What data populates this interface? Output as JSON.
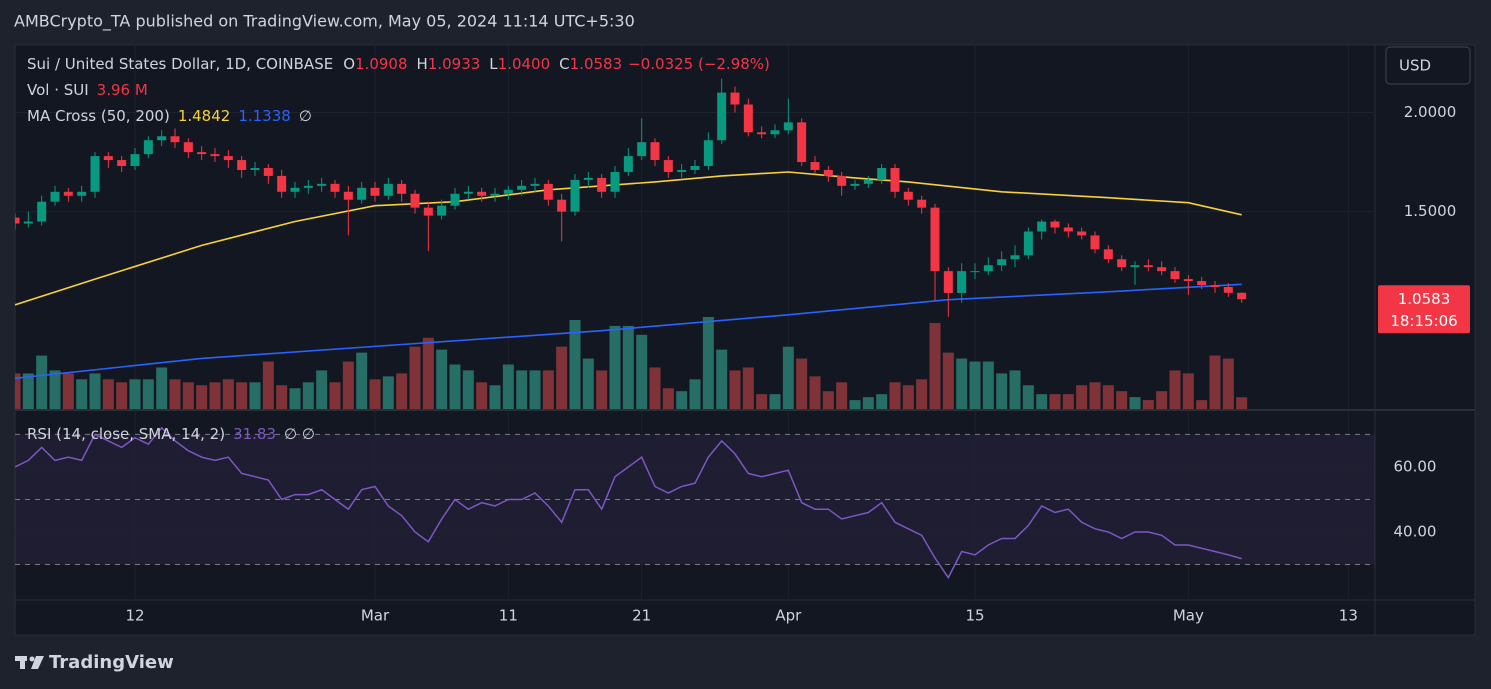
{
  "header": {
    "published": "AMBCrypto_TA published on TradingView.com, May 05, 2024 11:14 UTC+5:30",
    "currency": "USD",
    "brand": "TradingView"
  },
  "chart_data": [
    {
      "type": "candlestick",
      "title": "Sui / United States Dollar, 1D, COINBASE",
      "ohlc_legend": [
        {
          "key": "O",
          "label": "1.0908"
        },
        {
          "key": "H",
          "label": "1.0933"
        },
        {
          "key": "L",
          "label": "1.0400"
        },
        {
          "key": "C",
          "label": "1.0583"
        }
      ],
      "change_label": "−0.0325 (−2.98%)",
      "countdown": "18:15:06",
      "up_color": "#089981",
      "down_color": "#f23645",
      "xlim": [
        "2024-02-03",
        "2024-05-15"
      ],
      "xticks": [
        {
          "value": "2024-02-12",
          "label": "12"
        },
        {
          "value": "2024-03-01",
          "label": "Mar"
        },
        {
          "value": "2024-03-11",
          "label": "11"
        },
        {
          "value": "2024-03-21",
          "label": "21"
        },
        {
          "value": "2024-04-01",
          "label": "Apr"
        },
        {
          "value": "2024-04-15",
          "label": "15"
        },
        {
          "value": "2024-05-01",
          "label": "May"
        },
        {
          "value": "2024-05-13",
          "label": "13"
        }
      ],
      "ylim": [
        0.5,
        2.34
      ],
      "yticks": [
        {
          "value": 2,
          "label": "2.0000"
        },
        {
          "value": 1.5,
          "label": "1.5000"
        }
      ],
      "grid": true,
      "x": [
        "2024-02-03",
        "2024-02-04",
        "2024-02-05",
        "2024-02-06",
        "2024-02-07",
        "2024-02-08",
        "2024-02-09",
        "2024-02-10",
        "2024-02-11",
        "2024-02-12",
        "2024-02-13",
        "2024-02-14",
        "2024-02-15",
        "2024-02-16",
        "2024-02-17",
        "2024-02-18",
        "2024-02-19",
        "2024-02-20",
        "2024-02-21",
        "2024-02-22",
        "2024-02-23",
        "2024-02-24",
        "2024-02-25",
        "2024-02-26",
        "2024-02-27",
        "2024-02-28",
        "2024-02-29",
        "2024-03-01",
        "2024-03-02",
        "2024-03-03",
        "2024-03-04",
        "2024-03-05",
        "2024-03-06",
        "2024-03-07",
        "2024-03-08",
        "2024-03-09",
        "2024-03-10",
        "2024-03-11",
        "2024-03-12",
        "2024-03-13",
        "2024-03-14",
        "2024-03-15",
        "2024-03-16",
        "2024-03-17",
        "2024-03-18",
        "2024-03-19",
        "2024-03-20",
        "2024-03-21",
        "2024-03-22",
        "2024-03-23",
        "2024-03-24",
        "2024-03-25",
        "2024-03-26",
        "2024-03-27",
        "2024-03-28",
        "2024-03-29",
        "2024-03-30",
        "2024-03-31",
        "2024-04-01",
        "2024-04-02",
        "2024-04-03",
        "2024-04-04",
        "2024-04-05",
        "2024-04-06",
        "2024-04-07",
        "2024-04-08",
        "2024-04-09",
        "2024-04-10",
        "2024-04-11",
        "2024-04-12",
        "2024-04-13",
        "2024-04-14",
        "2024-04-15",
        "2024-04-16",
        "2024-04-17",
        "2024-04-18",
        "2024-04-19",
        "2024-04-20",
        "2024-04-21",
        "2024-04-22",
        "2024-04-23",
        "2024-04-24",
        "2024-04-25",
        "2024-04-26",
        "2024-04-27",
        "2024-04-28",
        "2024-04-29",
        "2024-04-30",
        "2024-05-01",
        "2024-05-02",
        "2024-05-03",
        "2024-05-04",
        "2024-05-05"
      ],
      "open": [
        1.47,
        1.44,
        1.45,
        1.55,
        1.6,
        1.58,
        1.6,
        1.78,
        1.76,
        1.73,
        1.79,
        1.86,
        1.88,
        1.85,
        1.8,
        1.79,
        1.78,
        1.76,
        1.71,
        1.72,
        1.68,
        1.6,
        1.62,
        1.63,
        1.64,
        1.6,
        1.56,
        1.62,
        1.58,
        1.64,
        1.59,
        1.52,
        1.48,
        1.53,
        1.59,
        1.6,
        1.58,
        1.59,
        1.61,
        1.63,
        1.64,
        1.56,
        1.5,
        1.66,
        1.67,
        1.6,
        1.7,
        1.78,
        1.85,
        1.76,
        1.7,
        1.71,
        1.73,
        1.86,
        2.1,
        2.04,
        1.9,
        1.89,
        1.91,
        1.95,
        1.75,
        1.71,
        1.68,
        1.63,
        1.64,
        1.66,
        1.72,
        1.6,
        1.56,
        1.52,
        1.2,
        1.09,
        1.2,
        1.2,
        1.23,
        1.26,
        1.28,
        1.4,
        1.45,
        1.42,
        1.4,
        1.38,
        1.31,
        1.26,
        1.22,
        1.23,
        1.22,
        1.2,
        1.16,
        1.15,
        1.13,
        1.12,
        1.0908
      ],
      "high": [
        1.49,
        1.5,
        1.58,
        1.63,
        1.62,
        1.63,
        1.8,
        1.8,
        1.78,
        1.82,
        1.88,
        1.91,
        1.92,
        1.87,
        1.83,
        1.82,
        1.81,
        1.78,
        1.75,
        1.74,
        1.71,
        1.65,
        1.66,
        1.67,
        1.66,
        1.63,
        1.65,
        1.65,
        1.67,
        1.66,
        1.61,
        1.55,
        1.56,
        1.62,
        1.63,
        1.62,
        1.62,
        1.63,
        1.66,
        1.67,
        1.66,
        1.59,
        1.69,
        1.7,
        1.69,
        1.73,
        1.82,
        1.97,
        1.87,
        1.78,
        1.74,
        1.76,
        1.9,
        2.17,
        2.13,
        2.07,
        1.93,
        1.94,
        2.07,
        1.97,
        1.78,
        1.73,
        1.7,
        1.66,
        1.68,
        1.74,
        1.74,
        1.62,
        1.58,
        1.54,
        1.22,
        1.24,
        1.24,
        1.27,
        1.3,
        1.33,
        1.42,
        1.46,
        1.46,
        1.44,
        1.42,
        1.4,
        1.33,
        1.28,
        1.25,
        1.26,
        1.25,
        1.22,
        1.18,
        1.17,
        1.15,
        1.14,
        1.0933
      ],
      "low": [
        1.41,
        1.42,
        1.43,
        1.53,
        1.55,
        1.55,
        1.57,
        1.72,
        1.7,
        1.71,
        1.77,
        1.83,
        1.82,
        1.77,
        1.76,
        1.75,
        1.72,
        1.67,
        1.68,
        1.64,
        1.57,
        1.57,
        1.59,
        1.6,
        1.57,
        1.38,
        1.54,
        1.55,
        1.56,
        1.55,
        1.49,
        1.3,
        1.46,
        1.51,
        1.56,
        1.55,
        1.55,
        1.56,
        1.58,
        1.6,
        1.53,
        1.35,
        1.48,
        1.62,
        1.57,
        1.57,
        1.68,
        1.76,
        1.73,
        1.67,
        1.67,
        1.69,
        1.71,
        1.84,
        2.0,
        1.88,
        1.87,
        1.87,
        1.89,
        1.73,
        1.69,
        1.65,
        1.58,
        1.61,
        1.62,
        1.64,
        1.57,
        1.53,
        1.49,
        1.05,
        0.97,
        1.04,
        1.16,
        1.18,
        1.2,
        1.22,
        1.26,
        1.36,
        1.39,
        1.37,
        1.36,
        1.29,
        1.24,
        1.2,
        1.13,
        1.2,
        1.18,
        1.14,
        1.08,
        1.11,
        1.09,
        1.07,
        1.04
      ],
      "close": [
        1.44,
        1.45,
        1.55,
        1.6,
        1.58,
        1.6,
        1.78,
        1.76,
        1.73,
        1.79,
        1.86,
        1.88,
        1.85,
        1.8,
        1.79,
        1.78,
        1.76,
        1.71,
        1.72,
        1.68,
        1.6,
        1.62,
        1.63,
        1.64,
        1.6,
        1.56,
        1.62,
        1.58,
        1.64,
        1.59,
        1.52,
        1.48,
        1.53,
        1.59,
        1.6,
        1.58,
        1.59,
        1.61,
        1.63,
        1.64,
        1.56,
        1.5,
        1.66,
        1.67,
        1.6,
        1.7,
        1.78,
        1.85,
        1.76,
        1.7,
        1.71,
        1.73,
        1.86,
        2.1,
        2.04,
        1.9,
        1.89,
        1.91,
        1.95,
        1.75,
        1.71,
        1.68,
        1.63,
        1.64,
        1.66,
        1.72,
        1.6,
        1.56,
        1.52,
        1.2,
        1.09,
        1.2,
        1.2,
        1.23,
        1.26,
        1.28,
        1.4,
        1.45,
        1.42,
        1.4,
        1.38,
        1.31,
        1.26,
        1.22,
        1.23,
        1.22,
        1.2,
        1.16,
        1.15,
        1.13,
        1.12,
        1.0908,
        1.0583
      ],
      "volume": {
        "name": "Vol · SUI",
        "label": "3.96 M",
        "up_color": "#266e66",
        "down_color": "#7f3338",
        "values": [
          12,
          12,
          18,
          13,
          12,
          10,
          12,
          10,
          9,
          10,
          10,
          14,
          10,
          9,
          8,
          9,
          10,
          9,
          9,
          16,
          8,
          7,
          9,
          13,
          9,
          16,
          19,
          10,
          11,
          12,
          21,
          24,
          20,
          15,
          13,
          9,
          8,
          15,
          13,
          13,
          13,
          21,
          30,
          17,
          13,
          28,
          28,
          25,
          14,
          7,
          6,
          10,
          31,
          20,
          13,
          14,
          5,
          5,
          21,
          17,
          11,
          6,
          9,
          3,
          4,
          5,
          9,
          8,
          10,
          29,
          19,
          17,
          16,
          16,
          12,
          13,
          8,
          5,
          5,
          5,
          8,
          9,
          8,
          6,
          4,
          3,
          6,
          13,
          12,
          3,
          18,
          17,
          3.96
        ]
      },
      "ma_legend": {
        "name": "MA Cross (50, 200)",
        "extra": "∅"
      },
      "ma": [
        {
          "color": "#f7d13b",
          "x": [
            "2024-02-03",
            "2024-02-09",
            "2024-02-17",
            "2024-02-24",
            "2024-03-01",
            "2024-03-07",
            "2024-03-14",
            "2024-03-22",
            "2024-03-27",
            "2024-04-01",
            "2024-04-06",
            "2024-04-10",
            "2024-04-17",
            "2024-04-25",
            "2024-05-01",
            "2024-05-05"
          ],
          "values": [
            1.03,
            1.16,
            1.33,
            1.45,
            1.53,
            1.55,
            1.61,
            1.65,
            1.68,
            1.7,
            1.67,
            1.65,
            1.6,
            1.57,
            1.545,
            1.4842
          ]
        },
        {
          "color": "#2962ff",
          "x": [
            "2024-02-03",
            "2024-02-17",
            "2024-03-03",
            "2024-03-18",
            "2024-04-01",
            "2024-04-13",
            "2024-04-25",
            "2024-05-05"
          ],
          "values": [
            0.66,
            0.76,
            0.83,
            0.9,
            0.98,
            1.056,
            1.096,
            1.1338
          ]
        }
      ]
    },
    {
      "type": "line",
      "title": "RSI (14, close, SMA, 14, 2)",
      "legend_extra": "∅ ∅",
      "xlim": [
        "2024-02-03",
        "2024-05-15"
      ],
      "ylim": [
        19.1,
        77.2
      ],
      "yticks": [
        {
          "value": 60,
          "label": "60.00"
        },
        {
          "value": 40,
          "label": "40.00"
        }
      ],
      "bands": [
        70,
        50,
        30
      ],
      "band_color": "#7e57c2",
      "x": [
        "2024-02-03",
        "2024-02-04",
        "2024-02-05",
        "2024-02-06",
        "2024-02-07",
        "2024-02-08",
        "2024-02-09",
        "2024-02-10",
        "2024-02-11",
        "2024-02-12",
        "2024-02-13",
        "2024-02-14",
        "2024-02-15",
        "2024-02-16",
        "2024-02-17",
        "2024-02-18",
        "2024-02-19",
        "2024-02-20",
        "2024-02-21",
        "2024-02-22",
        "2024-02-23",
        "2024-02-24",
        "2024-02-25",
        "2024-02-26",
        "2024-02-27",
        "2024-02-28",
        "2024-02-29",
        "2024-03-01",
        "2024-03-02",
        "2024-03-03",
        "2024-03-04",
        "2024-03-05",
        "2024-03-06",
        "2024-03-07",
        "2024-03-08",
        "2024-03-09",
        "2024-03-10",
        "2024-03-11",
        "2024-03-12",
        "2024-03-13",
        "2024-03-14",
        "2024-03-15",
        "2024-03-16",
        "2024-03-17",
        "2024-03-18",
        "2024-03-19",
        "2024-03-20",
        "2024-03-21",
        "2024-03-22",
        "2024-03-23",
        "2024-03-24",
        "2024-03-25",
        "2024-03-26",
        "2024-03-27",
        "2024-03-28",
        "2024-03-29",
        "2024-03-30",
        "2024-03-31",
        "2024-04-01",
        "2024-04-02",
        "2024-04-03",
        "2024-04-04",
        "2024-04-05",
        "2024-04-06",
        "2024-04-07",
        "2024-04-08",
        "2024-04-09",
        "2024-04-10",
        "2024-04-11",
        "2024-04-12",
        "2024-04-13",
        "2024-04-14",
        "2024-04-15",
        "2024-04-16",
        "2024-04-17",
        "2024-04-18",
        "2024-04-19",
        "2024-04-20",
        "2024-04-21",
        "2024-04-22",
        "2024-04-23",
        "2024-04-24",
        "2024-04-25",
        "2024-04-26",
        "2024-04-27",
        "2024-04-28",
        "2024-04-29",
        "2024-04-30",
        "2024-05-01",
        "2024-05-02",
        "2024-05-03",
        "2024-05-04",
        "2024-05-05"
      ],
      "series": [
        {
          "name": "RSI",
          "color": "#7e57c2",
          "values": [
            60,
            62,
            66,
            62,
            63,
            62,
            70,
            68,
            66,
            69,
            67,
            72,
            68,
            65,
            63,
            62,
            63,
            58,
            57,
            56,
            50,
            51.5,
            51.5,
            53,
            50,
            47,
            53,
            54,
            48,
            45,
            40,
            37,
            44,
            50,
            47,
            49,
            48,
            50,
            50,
            52,
            48,
            43,
            53,
            53,
            47,
            57,
            60,
            63,
            54,
            52,
            54,
            55,
            63,
            68,
            64,
            58,
            57,
            58,
            59,
            49,
            47,
            47,
            44,
            45,
            46,
            49,
            43,
            41,
            39,
            32,
            26,
            34,
            33,
            36,
            38,
            38,
            42,
            48,
            46,
            47,
            43,
            41,
            40,
            38,
            40,
            40,
            39,
            36,
            36,
            35,
            34,
            33,
            31.83
          ]
        }
      ]
    }
  ]
}
